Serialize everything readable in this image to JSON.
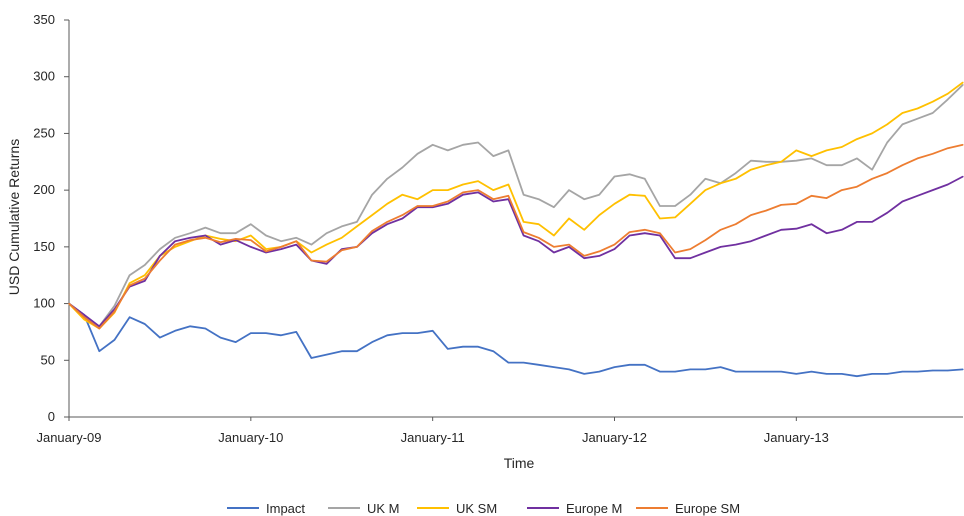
{
  "chart_data": {
    "type": "line",
    "title": "",
    "xlabel": "Time",
    "ylabel": "USD Cumulative Returns",
    "ylim": [
      0,
      350
    ],
    "yticks": [
      0,
      50,
      100,
      150,
      200,
      250,
      300,
      350
    ],
    "xlim": [
      "2009-01",
      "2013-12"
    ],
    "xticks": [
      {
        "label": "January-09",
        "x": "2009-01"
      },
      {
        "label": "January-10",
        "x": "2010-01"
      },
      {
        "label": "January-11",
        "x": "2011-01"
      },
      {
        "label": "January-12",
        "x": "2012-01"
      },
      {
        "label": "January-13",
        "x": "2013-01"
      }
    ],
    "grid": false,
    "legend_position": "bottom",
    "x": [
      "2009-01",
      "2009-02",
      "2009-03",
      "2009-04",
      "2009-05",
      "2009-06",
      "2009-07",
      "2009-08",
      "2009-09",
      "2009-10",
      "2009-11",
      "2009-12",
      "2010-01",
      "2010-02",
      "2010-03",
      "2010-04",
      "2010-05",
      "2010-06",
      "2010-07",
      "2010-08",
      "2010-09",
      "2010-10",
      "2010-11",
      "2010-12",
      "2011-01",
      "2011-02",
      "2011-03",
      "2011-04",
      "2011-05",
      "2011-06",
      "2011-07",
      "2011-08",
      "2011-09",
      "2011-10",
      "2011-11",
      "2011-12",
      "2012-01",
      "2012-02",
      "2012-03",
      "2012-04",
      "2012-05",
      "2012-06",
      "2012-07",
      "2012-08",
      "2012-09",
      "2012-10",
      "2012-11",
      "2012-12",
      "2013-01",
      "2013-02",
      "2013-03",
      "2013-04",
      "2013-05",
      "2013-06",
      "2013-07",
      "2013-08",
      "2013-09",
      "2013-10",
      "2013-11",
      "2013-12"
    ],
    "series": [
      {
        "name": "Impact",
        "color": "#4472C4",
        "values": [
          100,
          90,
          58,
          68,
          88,
          82,
          70,
          76,
          80,
          78,
          70,
          66,
          74,
          74,
          72,
          75,
          52,
          55,
          58,
          58,
          66,
          72,
          74,
          74,
          76,
          60,
          62,
          62,
          58,
          48,
          48,
          46,
          44,
          42,
          38,
          40,
          44,
          46,
          46,
          40,
          40,
          42,
          42,
          44,
          40,
          40,
          40,
          40,
          38,
          40,
          38,
          38,
          36,
          38,
          38,
          40,
          40,
          41,
          41,
          42
        ]
      },
      {
        "name": "UK M",
        "color": "#A5A5A5",
        "values": [
          100,
          88,
          80,
          98,
          125,
          134,
          148,
          158,
          162,
          167,
          162,
          162,
          170,
          160,
          155,
          158,
          152,
          162,
          168,
          172,
          196,
          210,
          220,
          232,
          240,
          235,
          240,
          242,
          230,
          235,
          196,
          192,
          185,
          200,
          192,
          196,
          212,
          214,
          210,
          186,
          186,
          196,
          210,
          206,
          215,
          226,
          225,
          225,
          226,
          228,
          222,
          222,
          228,
          218,
          242,
          258,
          263,
          268,
          280,
          293
        ]
      },
      {
        "name": "UK SM",
        "color": "#FFC000",
        "values": [
          100,
          86,
          78,
          92,
          118,
          125,
          142,
          150,
          155,
          160,
          157,
          155,
          160,
          148,
          150,
          155,
          145,
          152,
          158,
          168,
          178,
          188,
          196,
          192,
          200,
          200,
          205,
          208,
          200,
          205,
          172,
          170,
          160,
          175,
          165,
          178,
          188,
          196,
          195,
          175,
          176,
          188,
          200,
          206,
          210,
          218,
          222,
          225,
          235,
          230,
          235,
          238,
          245,
          250,
          258,
          268,
          272,
          278,
          285,
          295
        ]
      },
      {
        "name": "Europe M",
        "color": "#7030A0",
        "values": [
          100,
          90,
          80,
          95,
          115,
          120,
          142,
          155,
          158,
          160,
          152,
          156,
          150,
          145,
          148,
          152,
          138,
          135,
          148,
          150,
          162,
          170,
          175,
          185,
          185,
          188,
          196,
          198,
          190,
          192,
          160,
          155,
          145,
          150,
          140,
          142,
          148,
          160,
          162,
          160,
          140,
          140,
          145,
          150,
          152,
          155,
          160,
          165,
          166,
          170,
          162,
          165,
          172,
          172,
          180,
          190,
          195,
          200,
          205,
          212
        ]
      },
      {
        "name": "Europe SM",
        "color": "#ED7D31",
        "values": [
          100,
          88,
          78,
          93,
          116,
          122,
          138,
          152,
          156,
          158,
          154,
          157,
          156,
          146,
          150,
          155,
          138,
          137,
          147,
          150,
          164,
          172,
          178,
          186,
          186,
          190,
          198,
          200,
          192,
          195,
          163,
          158,
          150,
          152,
          142,
          146,
          152,
          163,
          165,
          162,
          145,
          148,
          156,
          165,
          170,
          178,
          182,
          187,
          188,
          195,
          193,
          200,
          203,
          210,
          215,
          222,
          228,
          232,
          237,
          240
        ]
      }
    ]
  }
}
